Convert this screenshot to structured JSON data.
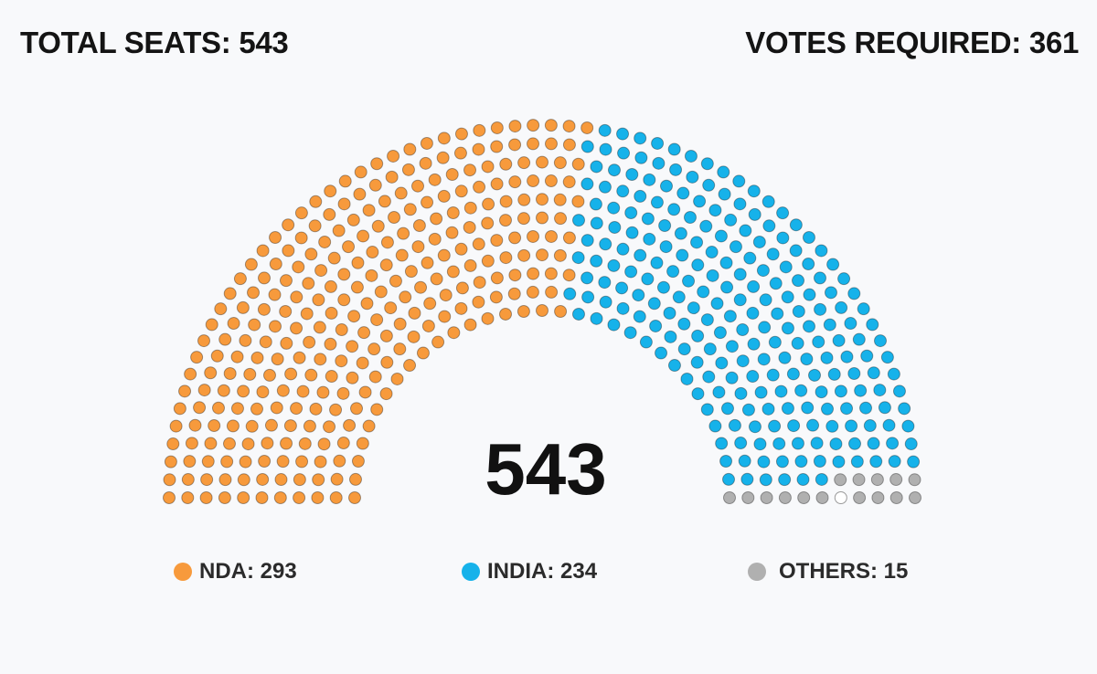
{
  "header": {
    "total_seats": "TOTAL SEATS: 543",
    "votes_required": "VOTES REQUIRED: 361"
  },
  "chart_data": {
    "type": "parliament",
    "total": "543",
    "series": [
      {
        "name": "NDA",
        "label": "NDA: 293",
        "value": 293,
        "color": "#f79a3c"
      },
      {
        "name": "INDIA",
        "label": "INDIA: 234",
        "value": 234,
        "color": "#16b2ea"
      },
      {
        "name": "OTHERS",
        "label": "OTHERS: 15",
        "value": 15,
        "color": "#b0b0b0"
      }
    ],
    "vacant": 1,
    "vacant_color": "#ffffff",
    "rows": 11
  }
}
